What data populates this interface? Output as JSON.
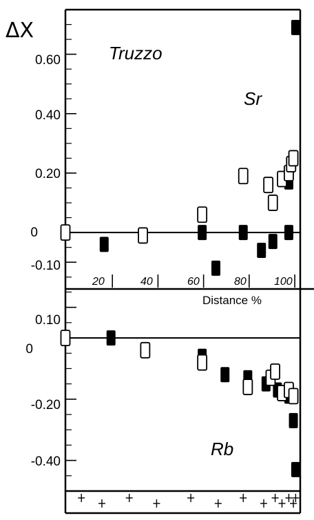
{
  "chart_data": {
    "type": "scatter",
    "ylabel": "ΔX",
    "xlabel": "Distance %",
    "title": "Truzzo",
    "x_ticks": [
      20,
      40,
      60,
      80,
      100
    ],
    "x_tick_labels": [
      "20",
      "40",
      "60",
      "80",
      "100"
    ],
    "xlim": [
      0,
      103
    ],
    "panels": [
      {
        "name": "Sr",
        "ylim": [
          -0.19,
          0.75
        ],
        "y_ticks": [
          -0.1,
          0,
          0.2,
          0.4,
          0.6
        ],
        "y_tick_labels": [
          "-0.10",
          "0",
          "0.20",
          "0.40",
          "0.60"
        ],
        "series": [
          {
            "marker": "filled",
            "points": [
              [
                17,
                -0.04
              ],
              [
                60,
                0.0
              ],
              [
                66,
                -0.12
              ],
              [
                78,
                0.0
              ],
              [
                86,
                -0.06
              ],
              [
                91,
                -0.03
              ],
              [
                98,
                0.0
              ],
              [
                98,
                0.17
              ],
              [
                101,
                0.69
              ]
            ]
          },
          {
            "marker": "open",
            "points": [
              [
                0,
                0.0
              ],
              [
                34,
                -0.01
              ],
              [
                60,
                0.06
              ],
              [
                78,
                0.19
              ],
              [
                89,
                0.16
              ],
              [
                91,
                0.1
              ],
              [
                95,
                0.18
              ],
              [
                98,
                0.2
              ],
              [
                99,
                0.23
              ],
              [
                100,
                0.25
              ]
            ]
          }
        ]
      },
      {
        "name": "Rb",
        "ylim": [
          -0.5,
          0.16
        ],
        "y_ticks": [
          -0.4,
          -0.2,
          0,
          0.1
        ],
        "y_tick_labels": [
          "-0.40",
          "-0.20",
          "0",
          "0.10"
        ],
        "series": [
          {
            "marker": "filled",
            "points": [
              [
                20,
                0.0
              ],
              [
                60,
                -0.06
              ],
              [
                70,
                -0.12
              ],
              [
                80,
                -0.13
              ],
              [
                88,
                -0.15
              ],
              [
                93,
                -0.17
              ],
              [
                98,
                -0.19
              ],
              [
                100,
                -0.27
              ],
              [
                101,
                -0.43
              ]
            ]
          },
          {
            "marker": "open",
            "points": [
              [
                0,
                0.0
              ],
              [
                35,
                -0.04
              ],
              [
                60,
                -0.08
              ],
              [
                80,
                -0.16
              ],
              [
                90,
                -0.13
              ],
              [
                92,
                -0.11
              ],
              [
                95,
                -0.18
              ],
              [
                98,
                -0.17
              ],
              [
                100,
                -0.19
              ]
            ]
          }
        ]
      }
    ],
    "bottom_strip": {
      "marker": "+",
      "x": [
        7,
        16,
        28,
        40,
        55,
        67,
        78,
        87,
        92,
        95,
        98,
        100,
        101
      ]
    }
  }
}
